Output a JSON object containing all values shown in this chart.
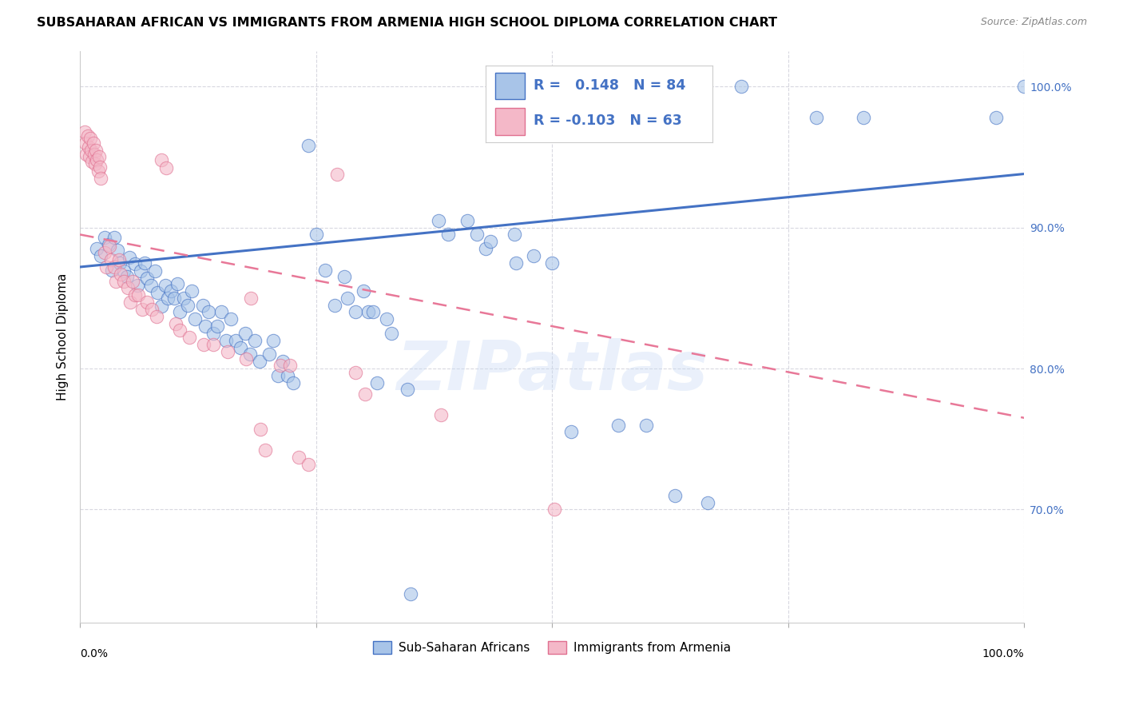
{
  "title": "SUBSAHARAN AFRICAN VS IMMIGRANTS FROM ARMENIA HIGH SCHOOL DIPLOMA CORRELATION CHART",
  "source": "Source: ZipAtlas.com",
  "ylabel": "High School Diploma",
  "legend_blue_r_val": "0.148",
  "legend_blue_n_val": "84",
  "legend_pink_r_val": "-0.103",
  "legend_pink_n_val": "63",
  "legend_label_blue": "Sub-Saharan Africans",
  "legend_label_pink": "Immigrants from Armenia",
  "watermark": "ZIPatlas",
  "right_ytick_vals": [
    70.0,
    80.0,
    90.0,
    100.0
  ],
  "xlim": [
    0.0,
    1.0
  ],
  "ylim": [
    0.62,
    1.025
  ],
  "blue_fill": "#a8c4e8",
  "blue_edge": "#4472c4",
  "pink_fill": "#f4b8c8",
  "pink_edge": "#e07090",
  "blue_line_color": "#4472c4",
  "pink_line_color": "#e87898",
  "grid_color": "#d8d8e0",
  "blue_scatter": [
    [
      0.018,
      0.885
    ],
    [
      0.022,
      0.88
    ],
    [
      0.026,
      0.893
    ],
    [
      0.03,
      0.888
    ],
    [
      0.034,
      0.87
    ],
    [
      0.036,
      0.893
    ],
    [
      0.04,
      0.884
    ],
    [
      0.042,
      0.875
    ],
    [
      0.046,
      0.869
    ],
    [
      0.05,
      0.865
    ],
    [
      0.052,
      0.879
    ],
    [
      0.058,
      0.874
    ],
    [
      0.061,
      0.859
    ],
    [
      0.064,
      0.869
    ],
    [
      0.068,
      0.875
    ],
    [
      0.071,
      0.864
    ],
    [
      0.075,
      0.859
    ],
    [
      0.079,
      0.869
    ],
    [
      0.082,
      0.854
    ],
    [
      0.086,
      0.844
    ],
    [
      0.09,
      0.859
    ],
    [
      0.093,
      0.85
    ],
    [
      0.096,
      0.855
    ],
    [
      0.1,
      0.85
    ],
    [
      0.103,
      0.86
    ],
    [
      0.106,
      0.84
    ],
    [
      0.11,
      0.85
    ],
    [
      0.114,
      0.845
    ],
    [
      0.118,
      0.855
    ],
    [
      0.122,
      0.835
    ],
    [
      0.13,
      0.845
    ],
    [
      0.133,
      0.83
    ],
    [
      0.136,
      0.84
    ],
    [
      0.141,
      0.825
    ],
    [
      0.145,
      0.83
    ],
    [
      0.15,
      0.84
    ],
    [
      0.155,
      0.82
    ],
    [
      0.16,
      0.835
    ],
    [
      0.165,
      0.82
    ],
    [
      0.17,
      0.815
    ],
    [
      0.175,
      0.825
    ],
    [
      0.18,
      0.81
    ],
    [
      0.185,
      0.82
    ],
    [
      0.19,
      0.805
    ],
    [
      0.2,
      0.81
    ],
    [
      0.205,
      0.82
    ],
    [
      0.21,
      0.795
    ],
    [
      0.215,
      0.805
    ],
    [
      0.22,
      0.795
    ],
    [
      0.226,
      0.79
    ],
    [
      0.242,
      0.958
    ],
    [
      0.25,
      0.895
    ],
    [
      0.26,
      0.87
    ],
    [
      0.27,
      0.845
    ],
    [
      0.28,
      0.865
    ],
    [
      0.283,
      0.85
    ],
    [
      0.292,
      0.84
    ],
    [
      0.3,
      0.855
    ],
    [
      0.305,
      0.84
    ],
    [
      0.31,
      0.84
    ],
    [
      0.315,
      0.79
    ],
    [
      0.325,
      0.835
    ],
    [
      0.33,
      0.825
    ],
    [
      0.347,
      0.785
    ],
    [
      0.38,
      0.905
    ],
    [
      0.39,
      0.895
    ],
    [
      0.41,
      0.905
    ],
    [
      0.42,
      0.895
    ],
    [
      0.43,
      0.885
    ],
    [
      0.435,
      0.89
    ],
    [
      0.46,
      0.895
    ],
    [
      0.462,
      0.875
    ],
    [
      0.48,
      0.88
    ],
    [
      0.5,
      0.875
    ],
    [
      0.52,
      0.755
    ],
    [
      0.57,
      0.76
    ],
    [
      0.6,
      0.76
    ],
    [
      0.63,
      0.71
    ],
    [
      0.665,
      0.705
    ],
    [
      0.7,
      1.0
    ],
    [
      0.78,
      0.978
    ],
    [
      0.83,
      0.978
    ],
    [
      0.97,
      0.978
    ],
    [
      1.0,
      1.0
    ],
    [
      0.35,
      0.64
    ]
  ],
  "pink_scatter": [
    [
      0.005,
      0.968
    ],
    [
      0.006,
      0.96
    ],
    [
      0.007,
      0.952
    ],
    [
      0.008,
      0.965
    ],
    [
      0.009,
      0.957
    ],
    [
      0.01,
      0.95
    ],
    [
      0.011,
      0.963
    ],
    [
      0.012,
      0.955
    ],
    [
      0.013,
      0.947
    ],
    [
      0.014,
      0.96
    ],
    [
      0.015,
      0.952
    ],
    [
      0.016,
      0.945
    ],
    [
      0.017,
      0.955
    ],
    [
      0.018,
      0.948
    ],
    [
      0.019,
      0.94
    ],
    [
      0.02,
      0.95
    ],
    [
      0.021,
      0.943
    ],
    [
      0.022,
      0.935
    ],
    [
      0.026,
      0.882
    ],
    [
      0.028,
      0.872
    ],
    [
      0.031,
      0.887
    ],
    [
      0.033,
      0.877
    ],
    [
      0.036,
      0.872
    ],
    [
      0.038,
      0.862
    ],
    [
      0.041,
      0.877
    ],
    [
      0.043,
      0.867
    ],
    [
      0.046,
      0.862
    ],
    [
      0.051,
      0.857
    ],
    [
      0.053,
      0.847
    ],
    [
      0.056,
      0.862
    ],
    [
      0.058,
      0.852
    ],
    [
      0.062,
      0.852
    ],
    [
      0.066,
      0.842
    ],
    [
      0.071,
      0.847
    ],
    [
      0.076,
      0.842
    ],
    [
      0.081,
      0.837
    ],
    [
      0.086,
      0.948
    ],
    [
      0.091,
      0.942
    ],
    [
      0.101,
      0.832
    ],
    [
      0.106,
      0.827
    ],
    [
      0.116,
      0.822
    ],
    [
      0.131,
      0.817
    ],
    [
      0.141,
      0.817
    ],
    [
      0.156,
      0.812
    ],
    [
      0.176,
      0.807
    ],
    [
      0.181,
      0.85
    ],
    [
      0.191,
      0.757
    ],
    [
      0.196,
      0.742
    ],
    [
      0.212,
      0.802
    ],
    [
      0.222,
      0.802
    ],
    [
      0.232,
      0.737
    ],
    [
      0.242,
      0.732
    ],
    [
      0.272,
      0.938
    ],
    [
      0.292,
      0.797
    ],
    [
      0.302,
      0.782
    ],
    [
      0.382,
      0.767
    ],
    [
      0.502,
      0.7
    ]
  ],
  "blue_line_x": [
    0.0,
    1.0
  ],
  "blue_line_y": [
    0.872,
    0.938
  ],
  "pink_line_x": [
    0.0,
    1.0
  ],
  "pink_line_y": [
    0.895,
    0.765
  ]
}
